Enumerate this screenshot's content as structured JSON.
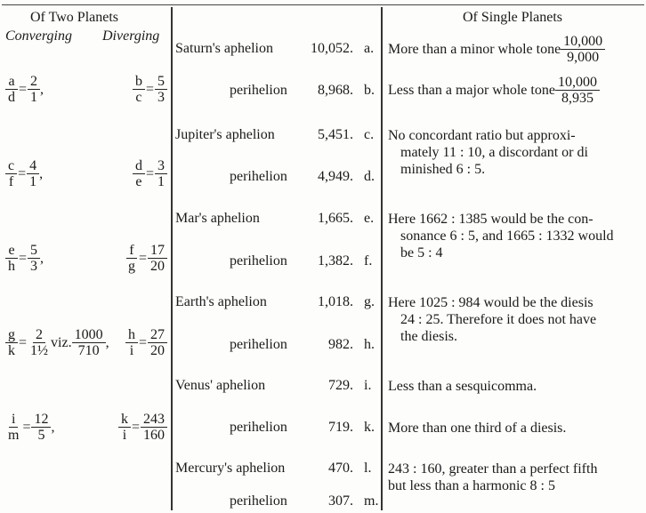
{
  "left": {
    "title": "Of Two Planets",
    "converging_label": "Converging",
    "diverging_label": "Diverging",
    "rows": [
      {
        "conv": {
          "a": [
            "a",
            "d"
          ],
          "b": [
            "2",
            "1"
          ],
          "tail": ","
        },
        "div": {
          "a": [
            "b",
            "c"
          ],
          "b": [
            "5",
            "3"
          ]
        }
      },
      {
        "conv": {
          "a": [
            "c",
            "f"
          ],
          "b": [
            "4",
            "1"
          ],
          "tail": ","
        },
        "div": {
          "a": [
            "d",
            "e"
          ],
          "b": [
            "3",
            "1"
          ]
        }
      },
      {
        "conv": {
          "a": [
            "e",
            "h"
          ],
          "b": [
            "5",
            "3"
          ],
          "tail": ","
        },
        "div": {
          "a": [
            "f",
            "g"
          ],
          "b": [
            "17",
            "20"
          ]
        }
      },
      {
        "conv": {
          "a": [
            "g",
            "k"
          ],
          "b": [
            "2",
            "1½"
          ],
          "viz": "viz.",
          "c": [
            "1000",
            "710"
          ],
          "tail": ","
        },
        "div": {
          "a": [
            "h",
            "i"
          ],
          "b": [
            "27",
            "20"
          ]
        }
      },
      {
        "conv": {
          "a": [
            "i",
            "m"
          ],
          "b": [
            "12",
            "5"
          ],
          "tail": ","
        },
        "div": {
          "a": [
            "k",
            "i"
          ],
          "b": [
            "243",
            "160"
          ]
        }
      }
    ]
  },
  "middle": {
    "rows": [
      {
        "name": "Saturn's aphelion",
        "value": "10,052.",
        "letter": "a."
      },
      {
        "name": "perihelion",
        "value": "8,968.",
        "letter": "b."
      },
      {
        "name": "Jupiter's aphelion",
        "value": "5,451.",
        "letter": "c."
      },
      {
        "name": "perihelion",
        "value": "4,949.",
        "letter": "d."
      },
      {
        "name": "Mar's aphelion",
        "value": "1,665.",
        "letter": "e."
      },
      {
        "name": "perihelion",
        "value": "1,382.",
        "letter": "f."
      },
      {
        "name": "Earth's aphelion",
        "value": "1,018.",
        "letter": "g."
      },
      {
        "name": "perihelion",
        "value": "982.",
        "letter": "h."
      },
      {
        "name": "Venus' aphelion",
        "value": "729.",
        "letter": "i."
      },
      {
        "name": "perihelion",
        "value": "719.",
        "letter": "k."
      },
      {
        "name": "Mercury's aphelion",
        "value": "470.",
        "letter": "l."
      },
      {
        "name": "perihelion",
        "value": "307.",
        "letter": "m."
      }
    ]
  },
  "right": {
    "title": "Of Single Planets",
    "saturn": {
      "text": "More than a minor whole tone",
      "frac": [
        "10,000",
        "9,000"
      ]
    },
    "saturn_b": {
      "text": "Less than a major whole tone",
      "frac": [
        "10,000",
        "8,935"
      ]
    },
    "jupiter": [
      "No concordant ratio but approxi-",
      "mately 11 : 10, a discordant or di",
      "minished 6 : 5."
    ],
    "mars": [
      "Here 1662 : 1385 would be the con-",
      "sonance 6 : 5, and 1665 : 1332 would",
      "be 5 : 4"
    ],
    "earth": [
      "Here 1025 : 984 would be the diesis",
      "24 : 25. Therefore it does not have",
      "the diesis."
    ],
    "venus_a": "Less than a sesquicomma.",
    "venus_b": "More than one third of a diesis.",
    "mercury": [
      "243 : 160, greater than a perfect fifth",
      "but less than a harmonic 8 : 5"
    ]
  }
}
